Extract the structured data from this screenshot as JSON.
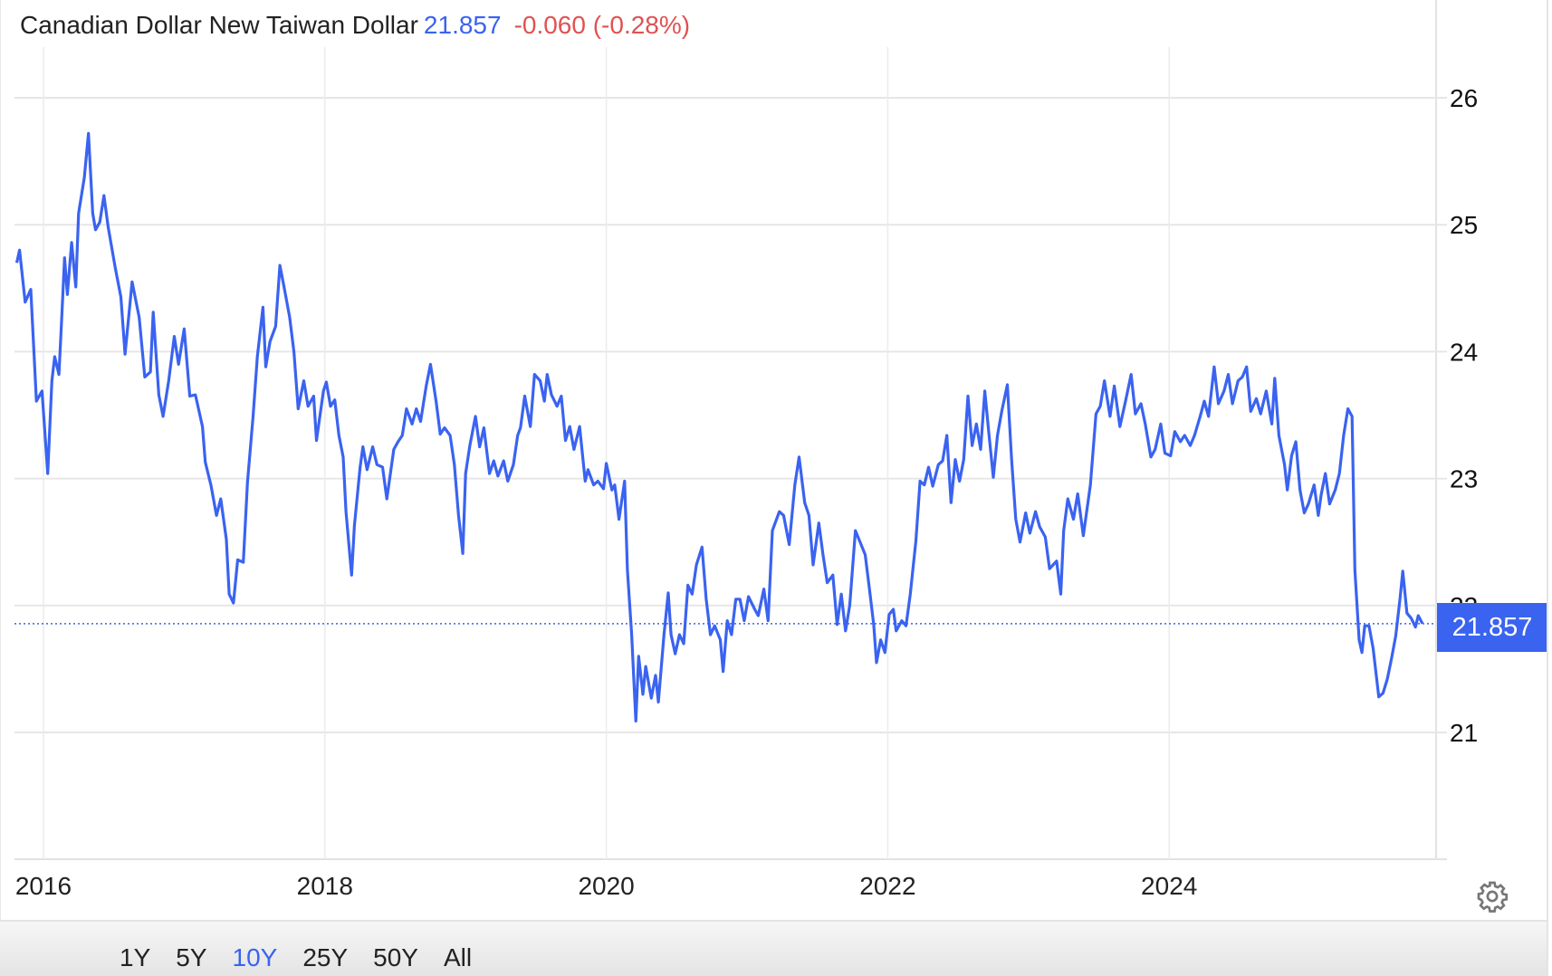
{
  "header": {
    "title": "Canadian Dollar New Taiwan Dollar",
    "price": "21.857",
    "change": "-0.060 (-0.28%)"
  },
  "price_tag": "21.857",
  "range_buttons": [
    "1Y",
    "5Y",
    "10Y",
    "25Y",
    "50Y",
    "All"
  ],
  "active_range": "10Y",
  "settings_icon": "gear-icon",
  "colors": {
    "line": "#3a63f0",
    "price": "#3a63f0",
    "change": "#e05252",
    "grid": "#e6e6e6"
  },
  "chart_data": {
    "type": "line",
    "title": "Canadian Dollar New Taiwan Dollar",
    "xlabel": "",
    "ylabel": "",
    "x_ticks": [
      "2016",
      "2018",
      "2020",
      "2022",
      "2024"
    ],
    "y_ticks": [
      "21",
      "22",
      "23",
      "24",
      "25",
      "26"
    ],
    "ylim": [
      20.0,
      26.3
    ],
    "xlim": [
      2015.8,
      2025.85
    ],
    "grid": true,
    "y_axis_side": "right",
    "last_value": 21.857,
    "series": [
      {
        "x": [
          2015.81,
          2015.83,
          2015.87,
          2015.91,
          2015.95,
          2015.99,
          2016.03,
          2016.06,
          2016.08,
          2016.11,
          2016.13,
          2016.15,
          2016.17,
          2016.2,
          2016.23,
          2016.25,
          2016.29,
          2016.32,
          2016.35,
          2016.37,
          2016.4,
          2016.43,
          2016.46,
          2016.51,
          2016.55,
          2016.58,
          2016.63,
          2016.68,
          2016.72,
          2016.76,
          2016.78,
          2016.82,
          2016.85,
          2016.89,
          2016.93,
          2016.96,
          2017.0,
          2017.04,
          2017.08,
          2017.13,
          2017.15,
          2017.19,
          2017.23,
          2017.26,
          2017.3,
          2017.32,
          2017.35,
          2017.38,
          2017.42,
          2017.45,
          2017.49,
          2017.52,
          2017.56,
          2017.58,
          2017.61,
          2017.65,
          2017.68,
          2017.71,
          2017.75,
          2017.78,
          2017.81,
          2017.85,
          2017.88,
          2017.92,
          2017.94,
          2017.99,
          2018.01,
          2018.04,
          2018.07,
          2018.1,
          2018.13,
          2018.15,
          2018.19,
          2018.21,
          2018.25,
          2018.27,
          2018.3,
          2018.34,
          2018.37,
          2018.41,
          2018.44,
          2018.49,
          2018.52,
          2018.55,
          2018.58,
          2018.62,
          2018.65,
          2018.68,
          2018.72,
          2018.75,
          2018.79,
          2018.82,
          2018.85,
          2018.89,
          2018.92,
          2018.95,
          2018.98,
          2019.0,
          2019.03,
          2019.07,
          2019.1,
          2019.13,
          2019.17,
          2019.2,
          2019.23,
          2019.27,
          2019.3,
          2019.34,
          2019.37,
          2019.39,
          2019.42,
          2019.46,
          2019.49,
          2019.53,
          2019.56,
          2019.58,
          2019.61,
          2019.65,
          2019.68,
          2019.71,
          2019.74,
          2019.77,
          2019.81,
          2019.85,
          2019.87,
          2019.91,
          2019.94,
          2019.98,
          2020.0,
          2020.04,
          2020.06,
          2020.09,
          2020.13,
          2020.15,
          2020.18,
          2020.21,
          2020.23,
          2020.26,
          2020.28,
          2020.32,
          2020.35,
          2020.37,
          2020.41,
          2020.44,
          2020.46,
          2020.49,
          2020.52,
          2020.55,
          2020.58,
          2020.61,
          2020.64,
          2020.68,
          2020.71,
          2020.74,
          2020.77,
          2020.81,
          2020.83,
          2020.86,
          2020.89,
          2020.92,
          2020.95,
          2020.98,
          2021.01,
          2021.05,
          2021.08,
          2021.12,
          2021.15,
          2021.18,
          2021.23,
          2021.26,
          2021.3,
          2021.34,
          2021.37,
          2021.41,
          2021.44,
          2021.47,
          2021.51,
          2021.54,
          2021.57,
          2021.61,
          2021.64,
          2021.67,
          2021.7,
          2021.73,
          2021.77,
          2021.8,
          2021.84,
          2021.87,
          2021.9,
          2021.92,
          2021.95,
          2021.98,
          2022.01,
          2022.04,
          2022.06,
          2022.1,
          2022.13,
          2022.16,
          2022.2,
          2022.23,
          2022.26,
          2022.29,
          2022.32,
          2022.36,
          2022.39,
          2022.42,
          2022.45,
          2022.48,
          2022.51,
          2022.54,
          2022.57,
          2022.6,
          2022.63,
          2022.66,
          2022.69,
          2022.72,
          2022.75,
          2022.78,
          2022.81,
          2022.85,
          2022.88,
          2022.91,
          2022.94,
          2022.98,
          2023.01,
          2023.05,
          2023.08,
          2023.12,
          2023.15,
          2023.2,
          2023.23,
          2023.25,
          2023.28,
          2023.32,
          2023.35,
          2023.39,
          2023.44,
          2023.48,
          2023.51,
          2023.54,
          2023.58,
          2023.61,
          2023.65,
          2023.69,
          2023.73,
          2023.76,
          2023.8,
          2023.83,
          2023.87,
          2023.9,
          2023.94,
          2023.97,
          2024.01,
          2024.04,
          2024.08,
          2024.11,
          2024.15,
          2024.18,
          2024.22,
          2024.25,
          2024.28,
          2024.32,
          2024.35,
          2024.39,
          2024.42,
          2024.45,
          2024.49,
          2024.52,
          2024.55,
          2024.58,
          2024.62,
          2024.65,
          2024.69,
          2024.73,
          2024.75,
          2024.78,
          2024.82,
          2024.84,
          2024.87,
          2024.9,
          2024.93,
          2024.96,
          2024.99,
          2025.03,
          2025.06,
          2025.08,
          2025.11,
          2025.14,
          2025.18,
          2025.21,
          2025.24,
          2025.27,
          2025.3,
          2025.32,
          2025.35,
          2025.37,
          2025.39,
          2025.42,
          2025.45,
          2025.49,
          2025.52,
          2025.55,
          2025.58,
          2025.61,
          2025.64,
          2025.66,
          2025.69,
          2025.72,
          2025.75,
          2025.77,
          2025.8
        ],
        "y": [
          24.7,
          24.8,
          24.39,
          24.49,
          23.61,
          23.69,
          23.04,
          23.77,
          23.96,
          23.82,
          24.27,
          24.74,
          24.45,
          24.86,
          24.51,
          25.09,
          25.37,
          25.72,
          25.09,
          24.96,
          25.02,
          25.23,
          24.98,
          24.66,
          24.43,
          23.98,
          24.55,
          24.27,
          23.8,
          23.84,
          24.31,
          23.66,
          23.49,
          23.77,
          24.12,
          23.9,
          24.18,
          23.65,
          23.66,
          23.41,
          23.13,
          22.95,
          22.71,
          22.84,
          22.52,
          22.09,
          22.02,
          22.36,
          22.34,
          22.97,
          23.49,
          23.96,
          24.35,
          23.88,
          24.08,
          24.2,
          24.68,
          24.51,
          24.27,
          24.0,
          23.55,
          23.77,
          23.57,
          23.65,
          23.3,
          23.69,
          23.76,
          23.57,
          23.62,
          23.34,
          23.17,
          22.74,
          22.24,
          22.63,
          23.09,
          23.25,
          23.07,
          23.25,
          23.11,
          23.09,
          22.84,
          23.23,
          23.29,
          23.34,
          23.55,
          23.43,
          23.55,
          23.45,
          23.73,
          23.9,
          23.61,
          23.35,
          23.4,
          23.34,
          23.11,
          22.71,
          22.41,
          23.04,
          23.26,
          23.49,
          23.25,
          23.4,
          23.04,
          23.14,
          23.02,
          23.14,
          22.98,
          23.11,
          23.34,
          23.4,
          23.65,
          23.41,
          23.82,
          23.77,
          23.61,
          23.82,
          23.66,
          23.57,
          23.65,
          23.3,
          23.41,
          23.23,
          23.41,
          22.98,
          23.07,
          22.95,
          22.98,
          22.92,
          23.12,
          22.91,
          22.95,
          22.68,
          22.98,
          22.28,
          21.77,
          21.09,
          21.6,
          21.3,
          21.52,
          21.27,
          21.45,
          21.24,
          21.77,
          22.1,
          21.77,
          21.62,
          21.77,
          21.7,
          22.16,
          22.09,
          22.32,
          22.46,
          22.05,
          21.77,
          21.84,
          21.73,
          21.48,
          21.88,
          21.77,
          22.05,
          22.05,
          21.88,
          22.07,
          21.98,
          21.92,
          22.13,
          21.88,
          22.59,
          22.74,
          22.71,
          22.48,
          22.95,
          23.17,
          22.81,
          22.71,
          22.32,
          22.65,
          22.4,
          22.18,
          22.24,
          21.85,
          22.09,
          21.8,
          22.0,
          22.59,
          22.51,
          22.4,
          22.13,
          21.85,
          21.55,
          21.73,
          21.63,
          21.93,
          21.97,
          21.8,
          21.88,
          21.84,
          22.09,
          22.51,
          22.98,
          22.95,
          23.09,
          22.94,
          23.11,
          23.14,
          23.34,
          22.81,
          23.15,
          22.98,
          23.15,
          23.65,
          23.26,
          23.43,
          23.23,
          23.69,
          23.34,
          23.01,
          23.34,
          23.53,
          23.74,
          23.15,
          22.68,
          22.5,
          22.73,
          22.57,
          22.74,
          22.62,
          22.54,
          22.29,
          22.35,
          22.09,
          22.59,
          22.84,
          22.68,
          22.88,
          22.55,
          22.95,
          23.51,
          23.57,
          23.77,
          23.49,
          23.73,
          23.41,
          23.61,
          23.82,
          23.51,
          23.59,
          23.43,
          23.17,
          23.23,
          23.43,
          23.2,
          23.18,
          23.37,
          23.29,
          23.34,
          23.26,
          23.34,
          23.49,
          23.61,
          23.49,
          23.88,
          23.59,
          23.69,
          23.82,
          23.59,
          23.77,
          23.8,
          23.88,
          23.53,
          23.63,
          23.51,
          23.69,
          23.43,
          23.79,
          23.34,
          23.11,
          22.91,
          23.18,
          23.29,
          22.91,
          22.73,
          22.8,
          22.95,
          22.71,
          22.87,
          23.04,
          22.8,
          22.91,
          23.04,
          23.34,
          23.55,
          23.49,
          22.28,
          21.73,
          21.63,
          21.84,
          21.84,
          21.66,
          21.28,
          21.31,
          21.42,
          21.58,
          21.76,
          22.05,
          22.27,
          21.94,
          21.9,
          21.83,
          21.92,
          21.857
        ]
      }
    ]
  }
}
